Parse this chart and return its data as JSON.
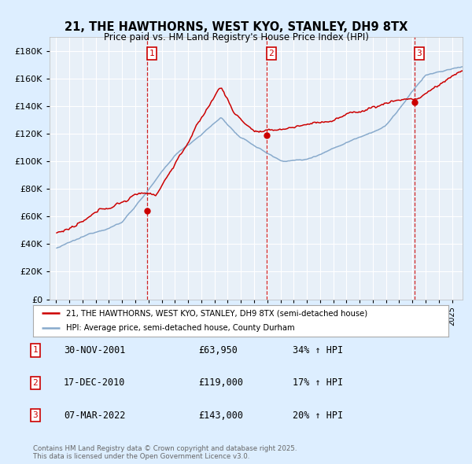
{
  "title1": "21, THE HAWTHORNS, WEST KYO, STANLEY, DH9 8TX",
  "title2": "Price paid vs. HM Land Registry's House Price Index (HPI)",
  "legend1": "21, THE HAWTHORNS, WEST KYO, STANLEY, DH9 8TX (semi-detached house)",
  "legend2": "HPI: Average price, semi-detached house, County Durham",
  "footer": "Contains HM Land Registry data © Crown copyright and database right 2025.\nThis data is licensed under the Open Government Licence v3.0.",
  "sale_color": "#cc0000",
  "hpi_color": "#88aacc",
  "bg_color": "#ddeeff",
  "plot_bg": "#e8f0f8",
  "ylim": [
    0,
    190000
  ],
  "yticks": [
    0,
    20000,
    40000,
    60000,
    80000,
    100000,
    120000,
    140000,
    160000,
    180000
  ],
  "sale_dates": [
    2001.917,
    2010.958,
    2022.167
  ],
  "sale_prices": [
    63950,
    119000,
    143000
  ],
  "table": [
    {
      "num": "1",
      "date": "30-NOV-2001",
      "price": "£63,950",
      "hpi": "34% ↑ HPI"
    },
    {
      "num": "2",
      "date": "17-DEC-2010",
      "price": "£119,000",
      "hpi": "17% ↑ HPI"
    },
    {
      "num": "3",
      "date": "07-MAR-2022",
      "price": "£143,000",
      "hpi": "20% ↑ HPI"
    }
  ]
}
